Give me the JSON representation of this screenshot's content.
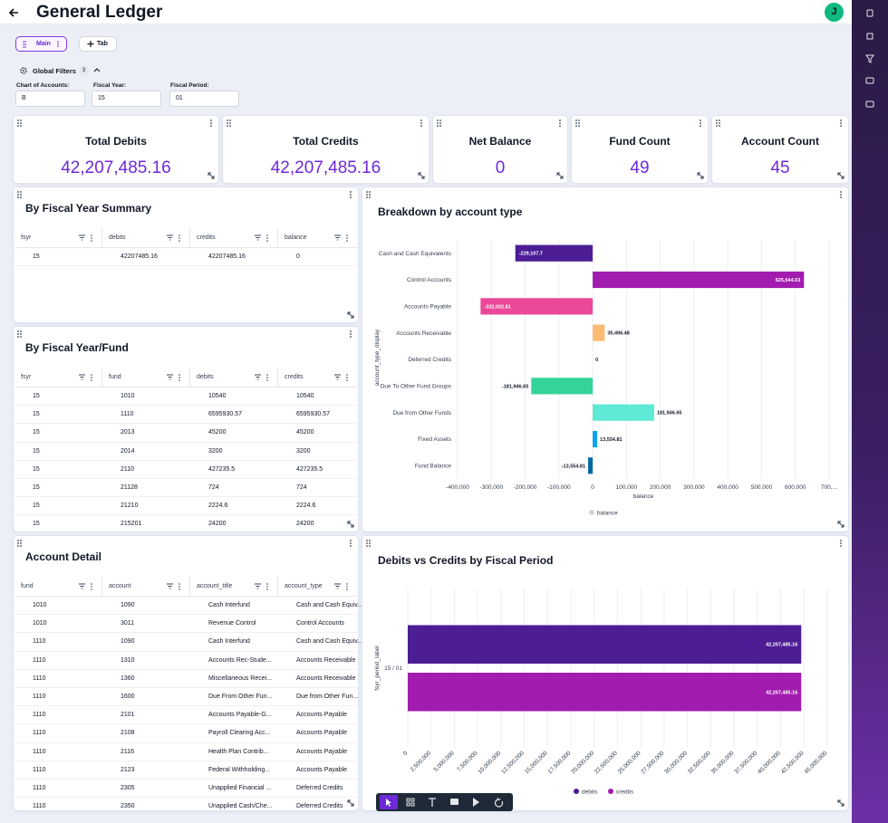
{
  "header": {
    "title": "General Ledger",
    "avatar": "J"
  },
  "tabs": [
    "Main",
    "Tab"
  ],
  "filters": {
    "title": "Global Filters",
    "count": "3",
    "items": [
      {
        "label": "Chart of Accounts:",
        "value": "B"
      },
      {
        "label": "Fiscal Year:",
        "value": "15"
      },
      {
        "label": "Fiscal Period:",
        "value": "01"
      }
    ]
  },
  "kpis": [
    {
      "title": "Total Debits",
      "value": "42,207,485.16"
    },
    {
      "title": "Total Credits",
      "value": "42,207,485.16"
    },
    {
      "title": "Net Balance",
      "value": "0"
    },
    {
      "title": "Fund Count",
      "value": "49"
    },
    {
      "title": "Account Count",
      "value": "45"
    }
  ],
  "tables": [
    {
      "title": "By Fiscal Year Summary",
      "columns": [
        "fsyr",
        "debits",
        "credits",
        "balance"
      ],
      "rows": [
        [
          "15",
          "42207485.16",
          "42207485.16",
          "0"
        ]
      ]
    },
    {
      "title": "By Fiscal Year/Fund",
      "columns": [
        "fsyr",
        "fund",
        "debits",
        "credits"
      ],
      "rows": [
        [
          "15",
          "1010",
          "10540",
          "10540"
        ],
        [
          "15",
          "1110",
          "6595930.57",
          "6595930.57"
        ],
        [
          "15",
          "2013",
          "45200",
          "45200"
        ],
        [
          "15",
          "2014",
          "3200",
          "3200"
        ],
        [
          "15",
          "2110",
          "427235.5",
          "427235.5"
        ],
        [
          "15",
          "21128",
          "724",
          "724"
        ],
        [
          "15",
          "21210",
          "2224.6",
          "2224.6"
        ],
        [
          "15",
          "215201",
          "24200",
          "24200"
        ]
      ]
    },
    {
      "title": "Account Detail",
      "columns": [
        "fund",
        "account",
        "account_title",
        "account_type"
      ],
      "rows": [
        [
          "1010",
          "1090",
          "Cash Interfund",
          "Cash and Cash Equiv..."
        ],
        [
          "1010",
          "3011",
          "Revenue Control",
          "Control Accounts"
        ],
        [
          "1110",
          "1090",
          "Cash Interfund",
          "Cash and Cash Equiv..."
        ],
        [
          "1110",
          "1310",
          "Accounts Rec-Stude...",
          "Accounts Receivable"
        ],
        [
          "1110",
          "1360",
          "Miscellaneous Recei...",
          "Accounts Receivable"
        ],
        [
          "1110",
          "1600",
          "Due From Other Fun...",
          "Due from Other Fun..."
        ],
        [
          "1110",
          "2101",
          "Accounts Payable-G...",
          "Accounts Payable"
        ],
        [
          "1110",
          "2108",
          "Payroll Clearing Acc...",
          "Accounts Payable"
        ],
        [
          "1110",
          "2116",
          "Health Plan Contrib...",
          "Accounts Payable"
        ],
        [
          "1110",
          "2123",
          "Federal Withholding...",
          "Accounts Payable"
        ],
        [
          "1110",
          "2305",
          "Unapplied Financial ...",
          "Deferred Credits"
        ],
        [
          "1110",
          "2350",
          "Unapplied Cash/Che...",
          "Deferred Credits"
        ]
      ]
    }
  ],
  "chart_data": [
    {
      "type": "hbar",
      "title": "Breakdown by account type",
      "xlabel": "balance",
      "ylabel": "account_type_display",
      "categories": [
        "Cash and Cash Equivalents",
        "Control Accounts",
        "Accounts Payable",
        "Accounts Receivable",
        "Deferred Credits",
        "Due To Other Fund Groups",
        "Due from Other Funds",
        "Fixed Assets",
        "Fund Balance"
      ],
      "series": [
        {
          "name": "balance",
          "color": "#d4d4d8",
          "values": [
            -229107.7,
            625644.03,
            -332032.81,
            35496.48,
            0,
            -181946.65,
            181946.65,
            13554.81,
            -13554.81
          ],
          "value_labels": [
            "-229,107.7",
            "625,644.03",
            "-332,032.81",
            "35,496.48",
            "0",
            "-181,946.65",
            "181,946.65",
            "13,554.81",
            "-13,554.81"
          ]
        }
      ],
      "bar_colors": [
        "#4c1d95",
        "#a21caf",
        "#ec4899",
        "#fdba74",
        "#9ca3af",
        "#34d399",
        "#5eead4",
        "#0ea5e9",
        "#0369a1"
      ],
      "xlim": [
        -400000,
        700000
      ],
      "xticks": [
        {
          "value": -400000,
          "label": "-400,000"
        },
        {
          "value": -300000,
          "label": "-300,000"
        },
        {
          "value": -200000,
          "label": "-200,000"
        },
        {
          "value": -100000,
          "label": "-100,000"
        },
        0,
        {
          "value": 100000,
          "label": "100,000"
        },
        {
          "value": 200000,
          "label": "200,000"
        },
        {
          "value": 300000,
          "label": "300,000"
        },
        {
          "value": 400000,
          "label": "400,000"
        },
        {
          "value": 500000,
          "label": "500,000"
        },
        {
          "value": 600000,
          "label": "600,000"
        },
        {
          "value": 700000,
          "label": "700,..."
        }
      ],
      "grid": true,
      "legend": "bottom"
    },
    {
      "type": "hbar",
      "title": "Debits vs Credits by Fiscal Period",
      "ylabel": "fsyr_period_label",
      "categories": [
        "15 / 01"
      ],
      "series": [
        {
          "name": "debits",
          "color": "#4c1d95",
          "values": [
            42207485.16
          ],
          "value_labels": [
            "42,207,485.16"
          ]
        },
        {
          "name": "credits",
          "color": "#a21caf",
          "values": [
            42207485.16
          ],
          "value_labels": [
            "42,207,485.16"
          ]
        }
      ],
      "xlim": [
        0,
        45000000
      ],
      "xticks": [
        0,
        {
          "value": 2500000,
          "label": "2,500,000"
        },
        {
          "value": 5000000,
          "label": "5,000,000"
        },
        {
          "value": 7500000,
          "label": "7,500,000"
        },
        {
          "value": 10000000,
          "label": "10,000,000"
        },
        {
          "value": 12500000,
          "label": "12,500,000"
        },
        {
          "value": 15000000,
          "label": "15,000,000"
        },
        {
          "value": 17500000,
          "label": "17,500,000"
        },
        {
          "value": 20000000,
          "label": "20,000,000"
        },
        {
          "value": 22500000,
          "label": "22,500,000"
        },
        {
          "value": 25000000,
          "label": "25,000,000"
        },
        {
          "value": 27500000,
          "label": "27,500,000"
        },
        {
          "value": 30000000,
          "label": "30,000,000"
        },
        {
          "value": 32500000,
          "label": "32,500,000"
        },
        {
          "value": 35000000,
          "label": "35,000,000"
        },
        {
          "value": 37500000,
          "label": "37,500,000"
        },
        {
          "value": 40000000,
          "label": "40,000,000"
        },
        {
          "value": 42500000,
          "label": "42,500,000"
        },
        {
          "value": 45000000,
          "label": "45,000,000"
        }
      ],
      "grid": true,
      "legend": "bottom",
      "tick_rotation": -45
    }
  ]
}
